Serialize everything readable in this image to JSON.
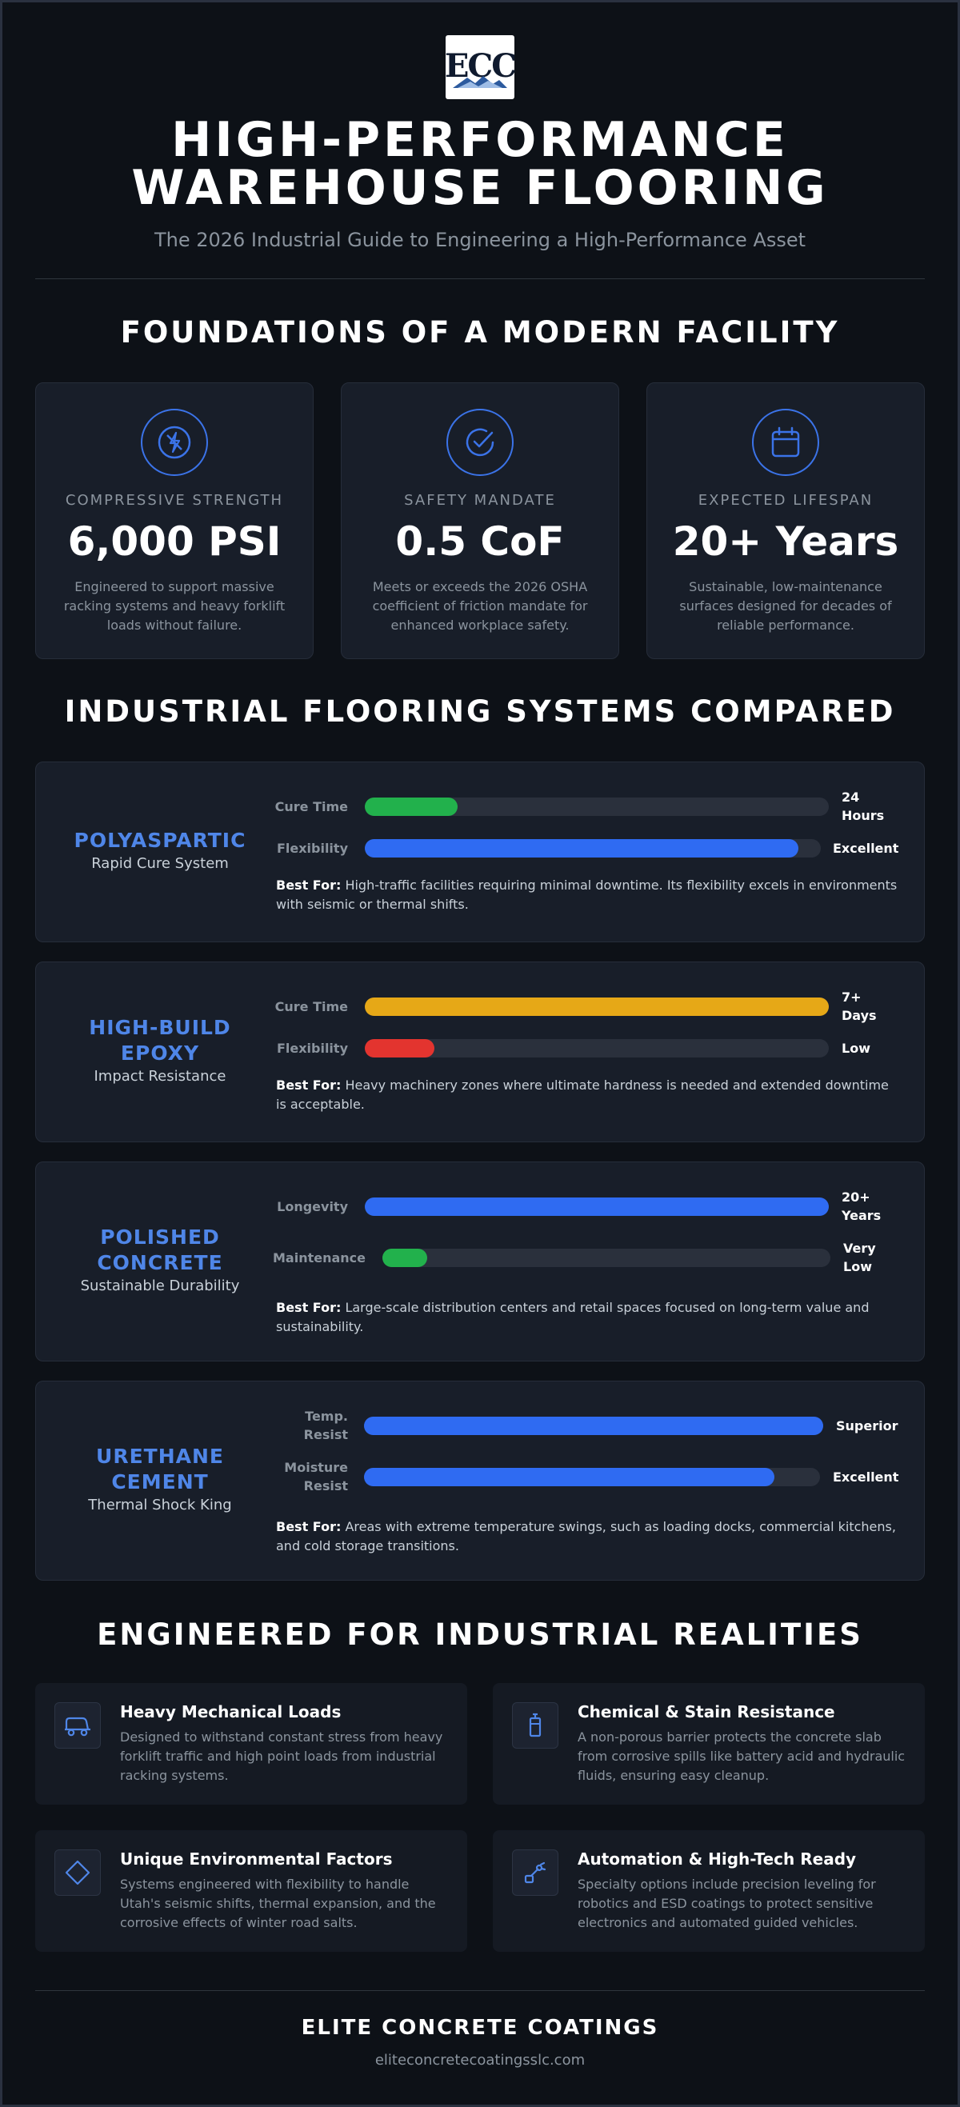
{
  "header": {
    "logo_text": "ECC",
    "title_line1": "HIGH-PERFORMANCE",
    "title_line2": "WAREHOUSE FLOORING",
    "subtitle": "The 2026 Industrial Guide to Engineering a High-Performance Asset"
  },
  "foundations": {
    "heading": "FOUNDATIONS OF A MODERN FACILITY",
    "cards": [
      {
        "icon": "lightning-icon",
        "label": "COMPRESSIVE STRENGTH",
        "value": "6,000 PSI",
        "desc": "Engineered to support massive racking systems and heavy forklift loads without failure."
      },
      {
        "icon": "check-circle-icon",
        "label": "SAFETY MANDATE",
        "value": "0.5 CoF",
        "desc": "Meets or exceeds the 2026 OSHA coefficient of friction mandate for enhanced workplace safety."
      },
      {
        "icon": "calendar-icon",
        "label": "EXPECTED LIFESPAN",
        "value": "20+ Years",
        "desc": "Sustainable, low-maintenance surfaces designed for decades of reliable performance."
      }
    ]
  },
  "systems": {
    "heading": "INDUSTRIAL FLOORING SYSTEMS COMPARED",
    "best_for_label": "Best For:",
    "items": [
      {
        "name_line1": "POLYASPARTIC",
        "name_line2": "",
        "subtitle": "Rapid Cure System",
        "bars": [
          {
            "label_line1": "Cure Time",
            "label_line2": "",
            "value_line1": "24",
            "value_line2": "Hours",
            "level": 0.2,
            "color": "#22b14c"
          },
          {
            "label_line1": "Flexibility",
            "label_line2": "",
            "value_line1": "Excellent",
            "value_line2": "",
            "level": 0.95,
            "color": "#2f6bf2"
          }
        ],
        "best_for": "High-traffic facilities requiring minimal downtime. Its flexibility excels in environments with seismic or thermal shifts."
      },
      {
        "name_line1": "HIGH-BUILD",
        "name_line2": "EPOXY",
        "subtitle": "Impact Resistance",
        "bars": [
          {
            "label_line1": "Cure Time",
            "label_line2": "",
            "value_line1": "7+",
            "value_line2": "Days",
            "level": 1.0,
            "color": "#e6a817"
          },
          {
            "label_line1": "Flexibility",
            "label_line2": "",
            "value_line1": "Low",
            "value_line2": "",
            "level": 0.15,
            "color": "#e3342f"
          }
        ],
        "best_for": "Heavy machinery zones where ultimate hardness is needed and extended downtime is acceptable."
      },
      {
        "name_line1": "POLISHED",
        "name_line2": "CONCRETE",
        "subtitle": "Sustainable Durability",
        "bars": [
          {
            "label_line1": "Longevity",
            "label_line2": "",
            "value_line1": "20+",
            "value_line2": "Years",
            "level": 1.0,
            "color": "#2f6bf2"
          },
          {
            "label_line1": "Maintenance",
            "label_line2": "",
            "value_line1": "Very",
            "value_line2": "Low",
            "level": 0.1,
            "color": "#22b14c"
          }
        ],
        "best_for": "Large-scale distribution centers and retail spaces focused on long-term value and sustainability."
      },
      {
        "name_line1": "URETHANE",
        "name_line2": "CEMENT",
        "subtitle": "Thermal Shock King",
        "bars": [
          {
            "label_line1": "Temp.",
            "label_line2": "Resist",
            "value_line1": "Superior",
            "value_line2": "",
            "level": 1.0,
            "color": "#2f6bf2"
          },
          {
            "label_line1": "Moisture",
            "label_line2": "Resist",
            "value_line1": "Excellent",
            "value_line2": "",
            "level": 0.9,
            "color": "#2f6bf2"
          }
        ],
        "best_for": "Areas with extreme temperature swings, such as loading docks, commercial kitchens, and cold storage transitions."
      }
    ]
  },
  "realities": {
    "heading": "ENGINEERED FOR INDUSTRIAL REALITIES",
    "items": [
      {
        "icon": "forklift-icon",
        "title": "Heavy Mechanical Loads",
        "desc": "Designed to withstand constant stress from heavy forklift traffic and high point loads from industrial racking systems."
      },
      {
        "icon": "battery-icon",
        "title": "Chemical & Stain Resistance",
        "desc": "A non-porous barrier protects the concrete slab from corrosive spills like battery acid and hydraulic fluids, ensuring easy cleanup."
      },
      {
        "icon": "diamond-icon",
        "title": "Unique Environmental Factors",
        "desc": "Systems engineered with flexibility to handle Utah's seismic shifts, thermal expansion, and the corrosive effects of winter road salts."
      },
      {
        "icon": "robot-arm-icon",
        "title": "Automation & High-Tech Ready",
        "desc": "Specialty options include precision leveling for robotics and ESD coatings to protect sensitive electronics and automated guided vehicles."
      }
    ]
  },
  "footer": {
    "company": "ELITE CONCRETE COATINGS",
    "url": "eliteconcretecoatingsslc.com"
  },
  "colors": {
    "background": "#0d1117",
    "accent": "#4f86e8",
    "card": "#181e29"
  }
}
